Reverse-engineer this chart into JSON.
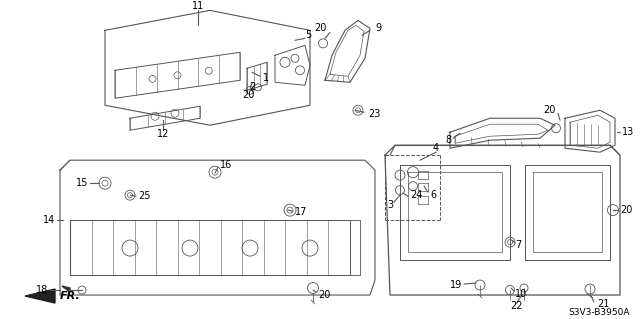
{
  "diagram_id": "S3V3-B3950A",
  "background_color": "#ffffff",
  "line_color": "#555555",
  "fig_width": 6.4,
  "fig_height": 3.19
}
